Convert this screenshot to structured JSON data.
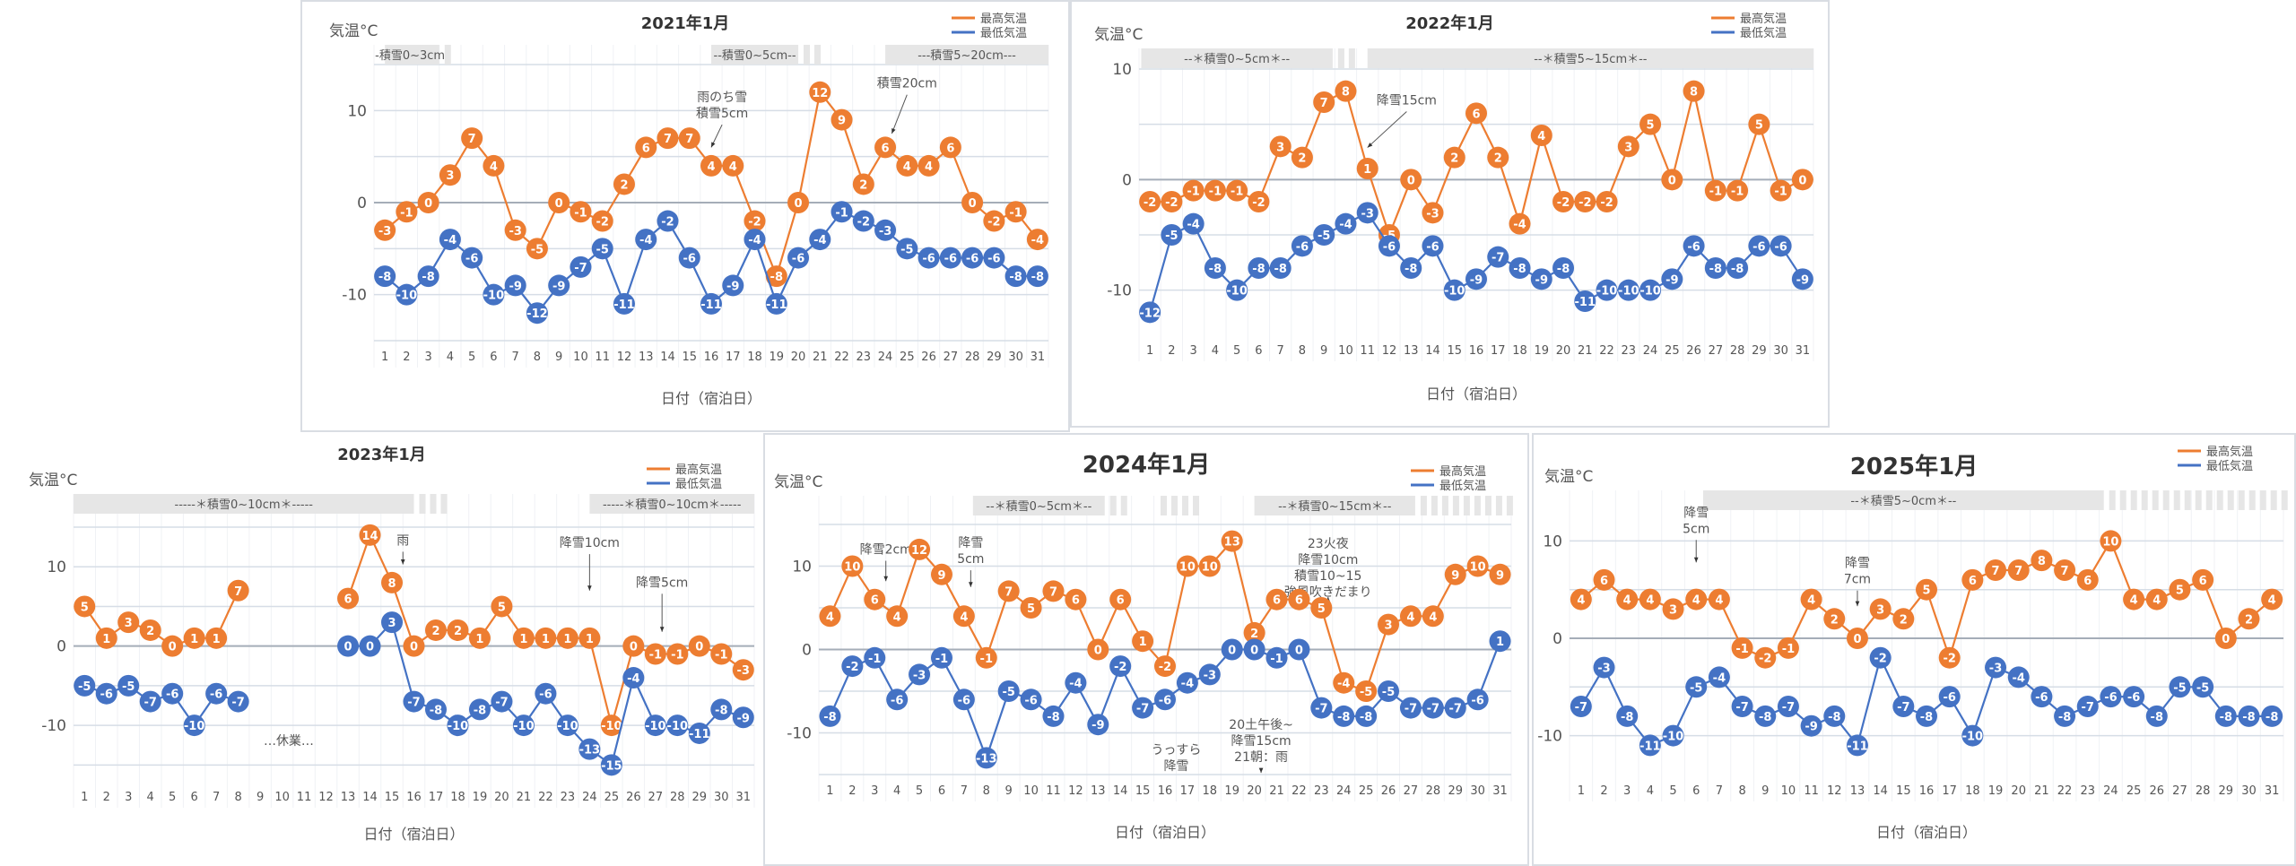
{
  "chart_data": [
    {
      "id": "p2021",
      "type": "line",
      "title": "2021年1月",
      "ylabel": "気温°C",
      "xlabel": "日付（宿泊日）",
      "ylim": [
        -15,
        15
      ],
      "yticks": [
        10,
        0,
        -10
      ],
      "categories": [
        1,
        2,
        3,
        4,
        5,
        6,
        7,
        8,
        9,
        10,
        11,
        12,
        13,
        14,
        15,
        16,
        17,
        18,
        19,
        20,
        21,
        22,
        23,
        24,
        25,
        26,
        27,
        28,
        29,
        30,
        31
      ],
      "legend": {
        "position": "top-right",
        "entries": [
          "最高気温",
          "最低気温"
        ]
      },
      "series": [
        {
          "name": "最高気温",
          "color": "#ED7D31",
          "values": [
            -3,
            -1,
            0,
            3,
            7,
            4,
            -3,
            -5,
            0,
            -1,
            -2,
            2,
            6,
            7,
            7,
            4,
            4,
            -2,
            -8,
            0,
            12,
            9,
            2,
            6,
            4,
            4,
            6,
            0,
            -2,
            -1,
            -4
          ]
        },
        {
          "name": "最低気温",
          "color": "#4472C4",
          "values": [
            -8,
            -10,
            -8,
            -4,
            -6,
            -10,
            -9,
            -12,
            -9,
            -7,
            -5,
            -11,
            -4,
            -2,
            -6,
            -11,
            -9,
            -4,
            -11,
            -6,
            -4,
            -1,
            -2,
            -3,
            -5,
            -6,
            -6,
            -6,
            -6,
            -8,
            -8
          ]
        }
      ],
      "snow_bands": [
        {
          "label": "-積雪0~3cm-",
          "from": 1,
          "to": 3.5,
          "dashes_to": 4
        },
        {
          "label": "--積雪0~5cm--",
          "from": 16,
          "to": 20,
          "dashes_to": 21
        },
        {
          "label": "---積雪5~20cm---",
          "from": 24,
          "to": 31.5
        }
      ],
      "annotations": [
        {
          "text": [
            "雨のち雪",
            "積雪5cm"
          ],
          "day": 16.5,
          "value": 11,
          "arrow_to": [
            16,
            6
          ]
        },
        {
          "text": [
            "積雪20cm"
          ],
          "day": 25,
          "value": 12.5,
          "arrow_to": [
            24.3,
            7.5
          ]
        }
      ]
    },
    {
      "id": "p2022",
      "type": "line",
      "title": "2022年1月",
      "ylabel": "気温°C",
      "xlabel": "日付（宿泊日）",
      "ylim": [
        -14,
        10
      ],
      "yticks": [
        10,
        0,
        -10
      ],
      "categories": [
        1,
        2,
        3,
        4,
        5,
        6,
        7,
        8,
        9,
        10,
        11,
        12,
        13,
        14,
        15,
        16,
        17,
        18,
        19,
        20,
        21,
        22,
        23,
        24,
        25,
        26,
        27,
        28,
        29,
        30,
        31
      ],
      "legend": {
        "position": "top-right",
        "entries": [
          "最高気温",
          "最低気温"
        ]
      },
      "series": [
        {
          "name": "最高気温",
          "color": "#ED7D31",
          "values": [
            -2,
            -2,
            -1,
            -1,
            -1,
            -2,
            3,
            2,
            7,
            8,
            1,
            -5,
            0,
            -3,
            2,
            6,
            2,
            -4,
            4,
            -2,
            -2,
            -2,
            3,
            5,
            0,
            8,
            -1,
            -1,
            5,
            -1,
            0
          ]
        },
        {
          "name": "最低気温",
          "color": "#4472C4",
          "values": [
            -12,
            -5,
            -4,
            -8,
            -10,
            -8,
            -8,
            -6,
            -5,
            -4,
            -3,
            -6,
            -8,
            -6,
            -10,
            -9,
            -7,
            -8,
            -9,
            -8,
            -11,
            -10,
            -10,
            -10,
            -9,
            -6,
            -8,
            -8,
            -6,
            -6,
            -9
          ]
        }
      ],
      "snow_bands": [
        {
          "label": "--＊積雪0~5cm＊--",
          "from": 0.6,
          "to": 9.4,
          "dashes_to": 10.4
        },
        {
          "label": "--＊積雪5~15cm＊--",
          "from": 11,
          "to": 31.5
        }
      ],
      "annotations": [
        {
          "text": [
            "降雪15cm"
          ],
          "day": 12.8,
          "value": 6.8,
          "arrow_to": [
            11,
            2.9
          ]
        }
      ]
    },
    {
      "id": "p2023",
      "type": "line",
      "title": "2023年1月",
      "ylabel": "気温°C",
      "xlabel": "日付（宿泊日）",
      "ylim": [
        -17,
        15
      ],
      "yticks": [
        10,
        0,
        -10
      ],
      "categories": [
        1,
        2,
        3,
        4,
        5,
        6,
        7,
        8,
        9,
        10,
        11,
        12,
        13,
        14,
        15,
        16,
        17,
        18,
        19,
        20,
        21,
        22,
        23,
        24,
        25,
        26,
        27,
        28,
        29,
        30,
        31
      ],
      "legend": {
        "position": "top-right",
        "entries": [
          "最高気温",
          "最低気温"
        ]
      },
      "series": [
        {
          "name": "最高気温",
          "color": "#ED7D31",
          "values": [
            5,
            1,
            3,
            2,
            0,
            1,
            1,
            7,
            null,
            null,
            null,
            null,
            6,
            14,
            8,
            0,
            2,
            2,
            1,
            5,
            1,
            1,
            1,
            1,
            -10,
            0,
            -1,
            -1,
            0,
            -1,
            -3
          ]
        },
        {
          "name": "最低気温",
          "color": "#4472C4",
          "values": [
            -5,
            -6,
            -5,
            -7,
            -6,
            -10,
            -6,
            -7,
            null,
            null,
            null,
            null,
            0,
            0,
            3,
            -7,
            -8,
            -10,
            -8,
            -7,
            -10,
            -6,
            -10,
            -13,
            -15,
            -4,
            -10,
            -10,
            -11,
            -8,
            -9
          ]
        }
      ],
      "snow_bands": [
        {
          "label": "-----＊積雪0~10cm＊-----",
          "from": 0.5,
          "to": 16,
          "dashes_to": 17.4
        },
        {
          "label": "-----＊積雪0~10cm＊-----",
          "from": 24,
          "to": 31.5
        }
      ],
      "annotations": [
        {
          "text": [
            "雨"
          ],
          "day": 15.5,
          "value": 12.8,
          "arrow_to": [
            15.5,
            10.3
          ]
        },
        {
          "text": [
            "降雪10cm"
          ],
          "day": 24,
          "value": 12.5,
          "arrow_to": [
            24,
            7
          ]
        },
        {
          "text": [
            "降雪5cm"
          ],
          "day": 27.3,
          "value": 7.5,
          "arrow_to": [
            27.3,
            1.8
          ]
        },
        {
          "text": [
            "…休業…"
          ],
          "day": 10.3,
          "value": -12.5
        }
      ]
    },
    {
      "id": "p2024",
      "type": "line",
      "title": "2024年1月",
      "ylabel": "気温°C",
      "xlabel": "日付（宿泊日）",
      "ylim": [
        -15,
        15
      ],
      "yticks": [
        10,
        0,
        -10
      ],
      "categories": [
        1,
        2,
        3,
        4,
        5,
        6,
        7,
        8,
        9,
        10,
        11,
        12,
        13,
        14,
        15,
        16,
        17,
        18,
        19,
        20,
        21,
        22,
        23,
        24,
        25,
        26,
        27,
        28,
        29,
        30,
        31
      ],
      "legend": {
        "position": "top-right",
        "entries": [
          "最高気温",
          "最低気温"
        ]
      },
      "series": [
        {
          "name": "最高気温",
          "color": "#ED7D31",
          "values": [
            4,
            10,
            6,
            4,
            12,
            9,
            4,
            -1,
            7,
            5,
            7,
            6,
            0,
            6,
            1,
            -2,
            10,
            10,
            13,
            2,
            6,
            6,
            5,
            -4,
            -5,
            3,
            4,
            4,
            9,
            10,
            9
          ]
        },
        {
          "name": "最低気温",
          "color": "#4472C4",
          "values": [
            -8,
            -2,
            -1,
            -6,
            -3,
            -1,
            -6,
            -13,
            -5,
            -6,
            -8,
            -4,
            -9,
            -2,
            -7,
            -6,
            -4,
            -3,
            0,
            0,
            -1,
            0,
            -7,
            -8,
            -8,
            -5,
            -7,
            -7,
            -7,
            -6,
            1
          ]
        }
      ],
      "snow_bands": [
        {
          "label": "--＊積雪0~5cm＊--",
          "from": 7.4,
          "to": 13.3,
          "dashes_to": 14.5,
          "dashes2": [
            15.8,
            17.6
          ]
        },
        {
          "label": "--＊積雪0~15cm＊--",
          "from": 20,
          "to": 27.2,
          "dashes_to": 31.5
        }
      ],
      "annotations": [
        {
          "text": [
            "降雪2cm"
          ],
          "day": 3.5,
          "value": 11.5,
          "arrow_to": [
            3.5,
            8.2
          ]
        },
        {
          "text": [
            "降雪",
            "5cm"
          ],
          "day": 7.3,
          "value": 12.3,
          "arrow_to": [
            7.3,
            7.5
          ]
        },
        {
          "text": [
            "23火夜",
            "降雪10cm",
            "積雪10~15",
            "強風吹きだまり"
          ],
          "day": 23.3,
          "value": 12.2,
          "arrow_to": [
            23.3,
            6.3
          ]
        },
        {
          "text": [
            "うっすら",
            "降雪"
          ],
          "day": 16.5,
          "value": -12.5
        },
        {
          "text": [
            "20土午後~",
            "降雪15cm",
            "21朝：雨"
          ],
          "day": 20.3,
          "value": -9.5,
          "arrow_to": [
            20.3,
            -14.8
          ]
        }
      ]
    },
    {
      "id": "p2025",
      "type": "line",
      "title": "2025年1月",
      "ylabel": "気温°C",
      "xlabel": "日付（宿泊日）",
      "ylim": [
        -14,
        14
      ],
      "yticks": [
        10,
        0,
        -10
      ],
      "categories": [
        1,
        2,
        3,
        4,
        5,
        6,
        7,
        8,
        9,
        10,
        11,
        12,
        13,
        14,
        15,
        16,
        17,
        18,
        19,
        20,
        21,
        22,
        23,
        24,
        25,
        26,
        27,
        28,
        29,
        30,
        31
      ],
      "legend": {
        "position": "top-right",
        "entries": [
          "最高気温",
          "最低気温"
        ]
      },
      "series": [
        {
          "name": "最高気温",
          "color": "#ED7D31",
          "values": [
            4,
            6,
            4,
            4,
            3,
            4,
            4,
            -1,
            -2,
            -1,
            4,
            2,
            0,
            3,
            2,
            5,
            -2,
            6,
            7,
            7,
            8,
            7,
            6,
            10,
            4,
            4,
            5,
            6,
            0,
            2,
            4
          ]
        },
        {
          "name": "最低気温",
          "color": "#4472C4",
          "values": [
            -7,
            -3,
            -8,
            -11,
            -10,
            -5,
            -4,
            -7,
            -8,
            -7,
            -9,
            -8,
            -11,
            -2,
            -7,
            -8,
            -6,
            -10,
            -3,
            -4,
            -6,
            -8,
            -7,
            -6,
            -6,
            -8,
            -5,
            -5,
            -8,
            -8,
            -8
          ]
        }
      ],
      "snow_bands": [
        {
          "label": "--＊積雪5~0cm＊--",
          "from": 6.3,
          "to": 23.7,
          "dashes_to": 31.5
        }
      ],
      "annotations": [
        {
          "text": [
            "降雪",
            "5cm"
          ],
          "day": 6,
          "value": 12.5,
          "arrow_to": [
            6,
            7.8
          ]
        },
        {
          "text": [
            "降雪",
            "7cm"
          ],
          "day": 13,
          "value": 7.3,
          "arrow_to": [
            13,
            3.3
          ]
        }
      ]
    }
  ]
}
